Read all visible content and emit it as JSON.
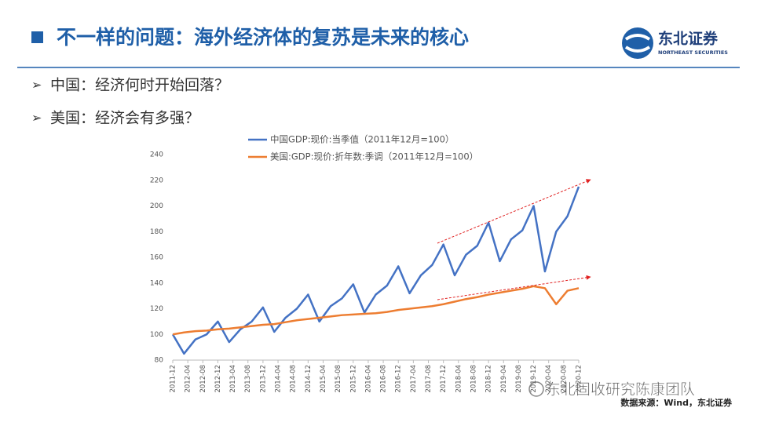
{
  "header": {
    "title": "不一样的问题：海外经济体的复苏是未来的核心",
    "logo_name": "东北证券",
    "logo_sub": "NORTHEAST SECURITIES"
  },
  "bullets": [
    "中国：经济何时开始回落？",
    "美国：经济会有多强？"
  ],
  "chart_data": {
    "type": "line",
    "xticks": [
      "2011-12",
      "2012-04",
      "2012-08",
      "2012-12",
      "2013-04",
      "2013-08",
      "2013-12",
      "2014-04",
      "2014-08",
      "2014-12",
      "2015-04",
      "2015-08",
      "2015-12",
      "2016-04",
      "2016-08",
      "2016-12",
      "2017-04",
      "2017-08",
      "2017-12",
      "2018-04",
      "2018-08",
      "2018-12",
      "2019-04",
      "2019-08",
      "2019-12",
      "2020-04",
      "2020-08",
      "2020-12"
    ],
    "x": [
      "2011-12",
      "2012-03",
      "2012-06",
      "2012-09",
      "2012-12",
      "2013-03",
      "2013-06",
      "2013-09",
      "2013-12",
      "2014-03",
      "2014-06",
      "2014-09",
      "2014-12",
      "2015-03",
      "2015-06",
      "2015-09",
      "2015-12",
      "2016-03",
      "2016-06",
      "2016-09",
      "2016-12",
      "2017-03",
      "2017-06",
      "2017-09",
      "2017-12",
      "2018-03",
      "2018-06",
      "2018-09",
      "2018-12",
      "2019-03",
      "2019-06",
      "2019-09",
      "2019-12",
      "2020-03",
      "2020-06",
      "2020-09",
      "2020-12"
    ],
    "series": [
      {
        "name": "中国GDP:现价:当季值（2011年12月=100）",
        "color": "#4472c4",
        "values": [
          100,
          85,
          96,
          100,
          110,
          94,
          104,
          110,
          121,
          102,
          113,
          120,
          131,
          110,
          122,
          128,
          139,
          117,
          131,
          138,
          153,
          132,
          146,
          154,
          170,
          146,
          162,
          169,
          187,
          157,
          174,
          181,
          200,
          149,
          180,
          192,
          215
        ]
      },
      {
        "name": "美国:GDP:现价:折年数:季调（2011年12月=100）",
        "color": "#ed7d31",
        "values": [
          100,
          101.5,
          102.5,
          103,
          104,
          104.5,
          105.5,
          106.5,
          107.5,
          108,
          109.5,
          111,
          112,
          113,
          114,
          115,
          115.5,
          116,
          116.5,
          117.5,
          119,
          120,
          121,
          122,
          123.5,
          125.5,
          127.5,
          129,
          131,
          132.5,
          134,
          135.5,
          137.5,
          136,
          123.5,
          134,
          136
        ]
      }
    ],
    "ylim": [
      80,
      240
    ],
    "yticks": [
      80,
      100,
      120,
      140,
      160,
      180,
      200,
      220,
      240
    ]
  },
  "footer": {
    "watermark": "东北固收研究陈康团队",
    "source": "数据来源：Wind，东北证券"
  }
}
